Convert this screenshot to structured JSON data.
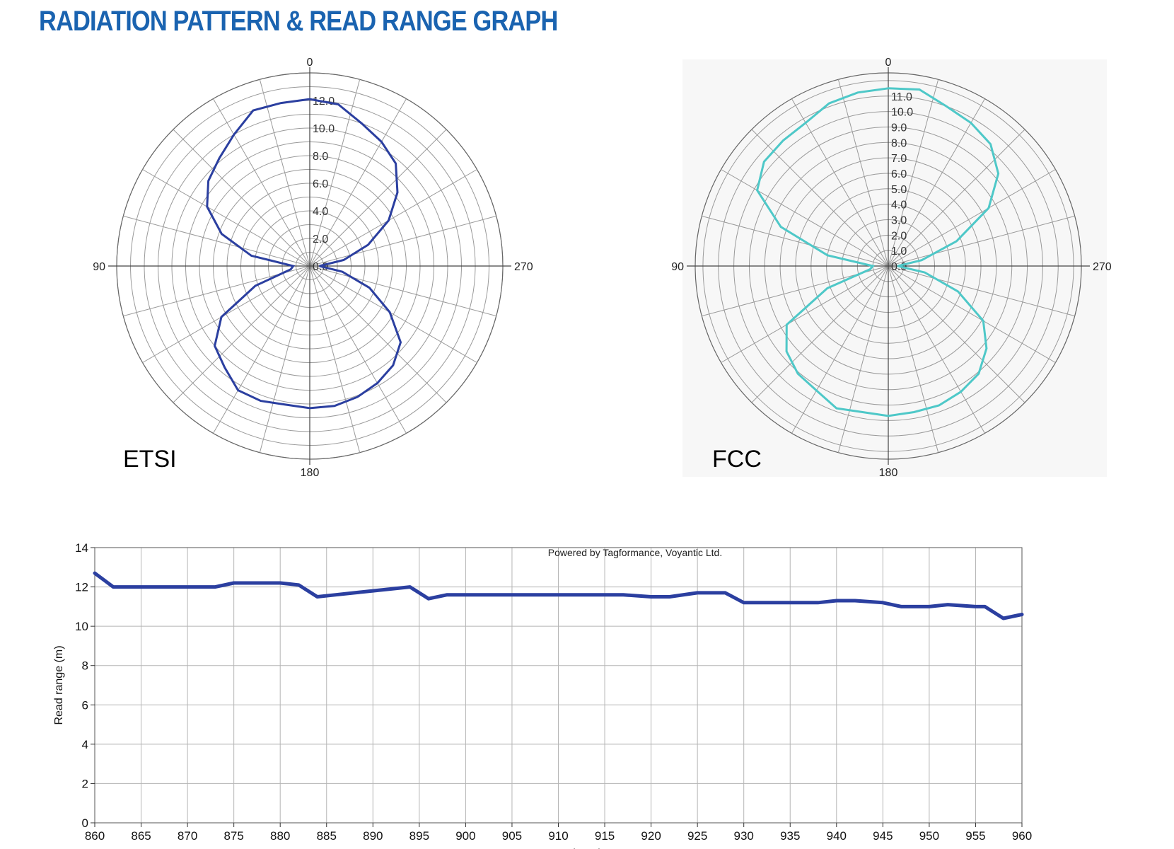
{
  "page": {
    "title": "RADIATION PATTERN & READ RANGE GRAPH",
    "title_color": "#1a63b0"
  },
  "chart_data": [
    {
      "type": "polar",
      "name": "ETSI",
      "label": "ETSI",
      "angle_labels": [
        "0",
        "90",
        "180",
        "270"
      ],
      "radial_ticks": [
        0,
        2,
        4,
        6,
        8,
        10,
        12
      ],
      "radial_tick_labels": [
        "0.0",
        "2.0",
        "4.0",
        "6.0",
        "8.0",
        "10.0",
        "12.0"
      ],
      "rmax": 14,
      "line_color": "#2b3fa0",
      "angles_deg": [
        0,
        10,
        20,
        30,
        40,
        50,
        60,
        70,
        80,
        90,
        100,
        110,
        120,
        130,
        140,
        150,
        160,
        170,
        180,
        190,
        200,
        210,
        220,
        230,
        240,
        250,
        260,
        270,
        280,
        290,
        300,
        310,
        320,
        330,
        340,
        350
      ],
      "r": [
        12.1,
        12.0,
        12.0,
        11.0,
        10.2,
        9.6,
        8.6,
        6.8,
        4.3,
        1.2,
        1.4,
        4.2,
        7.4,
        9.0,
        9.6,
        10.4,
        10.4,
        10.2,
        10.3,
        10.3,
        10.1,
        9.8,
        9.4,
        8.6,
        6.7,
        4.6,
        2.4,
        0.7,
        2.5,
        4.5,
        6.6,
        8.3,
        9.7,
        10.4,
        11.0,
        11.9
      ]
    },
    {
      "type": "polar",
      "name": "FCC",
      "label": "FCC",
      "angle_labels": [
        "0",
        "90",
        "180",
        "270"
      ],
      "radial_ticks": [
        0,
        1,
        2,
        3,
        4,
        5,
        6,
        7,
        8,
        9,
        10,
        11
      ],
      "radial_tick_labels": [
        "0.0",
        "1.0",
        "2.0",
        "3.0",
        "4.0",
        "5.0",
        "6.0",
        "7.0",
        "8.0",
        "9.0",
        "10.0",
        "11.0"
      ],
      "rmax": 12.5,
      "line_color": "#4ec8c8",
      "angles_deg": [
        0,
        10,
        20,
        30,
        40,
        50,
        60,
        70,
        80,
        90,
        100,
        110,
        120,
        130,
        140,
        150,
        160,
        170,
        180,
        190,
        200,
        210,
        220,
        230,
        240,
        250,
        260,
        270,
        280,
        290,
        300,
        310,
        320,
        330,
        340,
        350
      ],
      "r": [
        11.5,
        11.4,
        11.2,
        10.7,
        10.6,
        10.5,
        9.8,
        7.4,
        4.0,
        1.0,
        1.2,
        4.2,
        7.6,
        8.6,
        9.1,
        9.3,
        9.8,
        9.6,
        9.7,
        9.6,
        9.6,
        9.4,
        9.1,
        8.3,
        7.1,
        4.8,
        2.4,
        0.6,
        2.2,
        4.7,
        7.5,
        9.3,
        10.3,
        10.7,
        11.0,
        11.6
      ]
    },
    {
      "type": "line",
      "annotation": "Powered by Tagformance, Voyantic Ltd.",
      "ylabel": "Read range (m)",
      "xlabel": "Frequency (MHz)",
      "xlim": [
        860,
        960
      ],
      "ylim": [
        0,
        14
      ],
      "x_ticks": [
        860,
        865,
        870,
        875,
        880,
        885,
        890,
        895,
        900,
        905,
        910,
        915,
        920,
        925,
        930,
        935,
        940,
        945,
        950,
        955,
        960
      ],
      "y_ticks": [
        0,
        2,
        4,
        6,
        8,
        10,
        12,
        14
      ],
      "grid": true,
      "line_color": "#2b3fa0",
      "x": [
        860,
        862,
        865,
        867,
        870,
        873,
        875,
        877,
        880,
        882,
        884,
        886,
        888,
        890,
        892,
        894,
        896,
        898,
        900,
        905,
        910,
        913,
        915,
        917,
        920,
        922,
        925,
        928,
        930,
        932,
        935,
        938,
        940,
        942,
        945,
        947,
        950,
        952,
        955,
        956,
        958,
        960
      ],
      "y": [
        12.7,
        12.0,
        12.0,
        12.0,
        12.0,
        12.0,
        12.2,
        12.2,
        12.2,
        12.1,
        11.5,
        11.6,
        11.7,
        11.8,
        11.9,
        12.0,
        11.4,
        11.6,
        11.6,
        11.6,
        11.6,
        11.6,
        11.6,
        11.6,
        11.5,
        11.5,
        11.7,
        11.7,
        11.2,
        11.2,
        11.2,
        11.2,
        11.3,
        11.3,
        11.2,
        11.0,
        11.0,
        11.1,
        11.0,
        11.0,
        10.4,
        10.6
      ]
    }
  ]
}
